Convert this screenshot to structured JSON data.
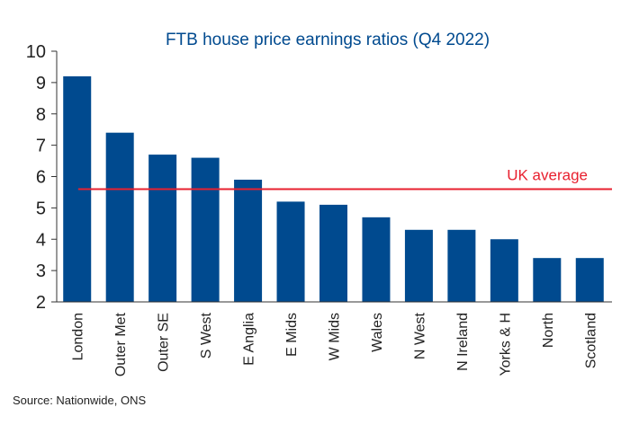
{
  "chart_data": {
    "type": "bar",
    "title": "FTB house price earnings ratios (Q4 2022)",
    "xlabel": "",
    "ylabel": "",
    "ylim": [
      2,
      10
    ],
    "yticks": [
      "2",
      "3",
      "4",
      "5",
      "6",
      "7",
      "8",
      "9",
      "10"
    ],
    "categories": [
      "London",
      "Outer Met",
      "Outer SE",
      "S West",
      "E Anglia",
      "E Mids",
      "W Mids",
      "Wales",
      "N West",
      "N Ireland",
      "Yorks & H",
      "North",
      "Scotland"
    ],
    "values": [
      9.2,
      7.4,
      6.7,
      6.6,
      5.9,
      5.2,
      5.1,
      4.7,
      4.3,
      4.3,
      4.0,
      3.4,
      3.4
    ],
    "reference_line": {
      "label": "UK average",
      "value": 5.6
    },
    "grid": false,
    "source": "Source: Nationwide, ONS",
    "colors": {
      "bar": "#004a8f",
      "title": "#004a8f",
      "reference": "#e8202f"
    }
  }
}
